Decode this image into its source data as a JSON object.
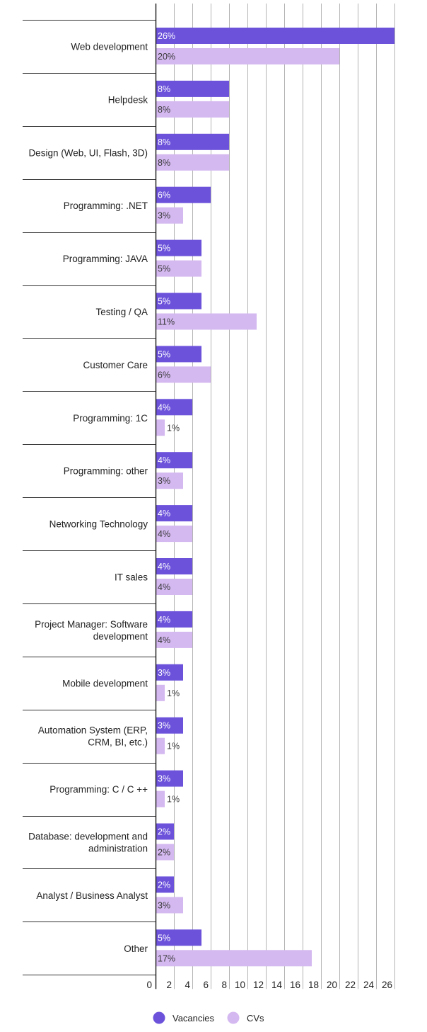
{
  "chart_data": {
    "type": "bar",
    "orientation": "horizontal",
    "categories": [
      [
        "Web development"
      ],
      [
        "Helpdesk"
      ],
      [
        "Design (Web, UI, Flash, 3D)"
      ],
      [
        "Programming: .NET"
      ],
      [
        "Programming: JAVA"
      ],
      [
        "Testing / QA"
      ],
      [
        "Customer Care"
      ],
      [
        "Programming: 1C"
      ],
      [
        "Programming: other"
      ],
      [
        "Networking Technology"
      ],
      [
        "IT sales"
      ],
      [
        "Project Manager: Software",
        "development"
      ],
      [
        "Mobile development"
      ],
      [
        "Automation System (ERP,",
        "CRM, BI, etc.)"
      ],
      [
        "Programming: C / C ++"
      ],
      [
        "Database: development and",
        "administration"
      ],
      [
        "Analyst / Business Analyst"
      ],
      [
        "Other"
      ]
    ],
    "series": [
      {
        "name": "Vacancies",
        "color": "#6c52db",
        "values": [
          26,
          8,
          8,
          6,
          5,
          5,
          5,
          4,
          4,
          4,
          4,
          4,
          3,
          3,
          3,
          2,
          2,
          5
        ],
        "labels": [
          "26%",
          "8%",
          "8%",
          "6%",
          "5%",
          "5%",
          "5%",
          "4%",
          "4%",
          "4%",
          "4%",
          "4%",
          "3%",
          "3%",
          "3%",
          "2%",
          "2%",
          "5%"
        ]
      },
      {
        "name": "CVs",
        "color": "#d4b8f0",
        "values": [
          20,
          8,
          8,
          3,
          5,
          11,
          6,
          1,
          3,
          4,
          4,
          4,
          1,
          1,
          1,
          2,
          3,
          17
        ],
        "labels": [
          "20%",
          "8%",
          "8%",
          "3%",
          "5%",
          "11%",
          "6%",
          "1%",
          "3%",
          "4%",
          "4%",
          "4%",
          "1%",
          "1%",
          "1%",
          "2%",
          "3%",
          "17%"
        ]
      }
    ],
    "xticks": [
      0,
      2,
      4,
      6,
      8,
      10,
      12,
      14,
      16,
      18,
      20,
      22,
      24,
      26
    ],
    "xlim": [
      0,
      26
    ],
    "grid": true,
    "legend_position": "bottom"
  }
}
